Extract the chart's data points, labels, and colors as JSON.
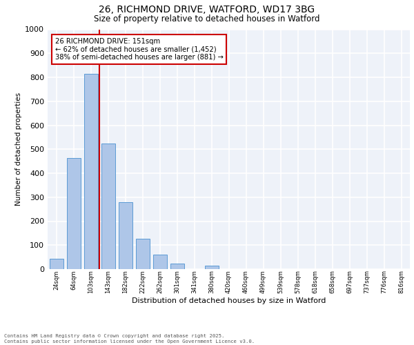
{
  "title1": "26, RICHMOND DRIVE, WATFORD, WD17 3BG",
  "title2": "Size of property relative to detached houses in Watford",
  "xlabel": "Distribution of detached houses by size in Watford",
  "ylabel": "Number of detached properties",
  "categories": [
    "24sqm",
    "64sqm",
    "103sqm",
    "143sqm",
    "182sqm",
    "222sqm",
    "262sqm",
    "301sqm",
    "341sqm",
    "380sqm",
    "420sqm",
    "460sqm",
    "499sqm",
    "539sqm",
    "578sqm",
    "618sqm",
    "658sqm",
    "697sqm",
    "737sqm",
    "776sqm",
    "816sqm"
  ],
  "values": [
    43,
    462,
    815,
    524,
    278,
    127,
    60,
    22,
    0,
    14,
    0,
    0,
    0,
    0,
    0,
    0,
    0,
    0,
    0,
    0,
    0
  ],
  "bar_color": "#aec6e8",
  "bar_edge_color": "#5b9bd5",
  "line_color": "#cc0000",
  "annotation_text": "26 RICHMOND DRIVE: 151sqm\n← 62% of detached houses are smaller (1,452)\n38% of semi-detached houses are larger (881) →",
  "annotation_box_color": "#cc0000",
  "ylim": [
    0,
    1000
  ],
  "yticks": [
    0,
    100,
    200,
    300,
    400,
    500,
    600,
    700,
    800,
    900,
    1000
  ],
  "bg_color": "#eef2f9",
  "grid_color": "#ffffff",
  "footer1": "Contains HM Land Registry data © Crown copyright and database right 2025.",
  "footer2": "Contains public sector information licensed under the Open Government Licence v3.0."
}
